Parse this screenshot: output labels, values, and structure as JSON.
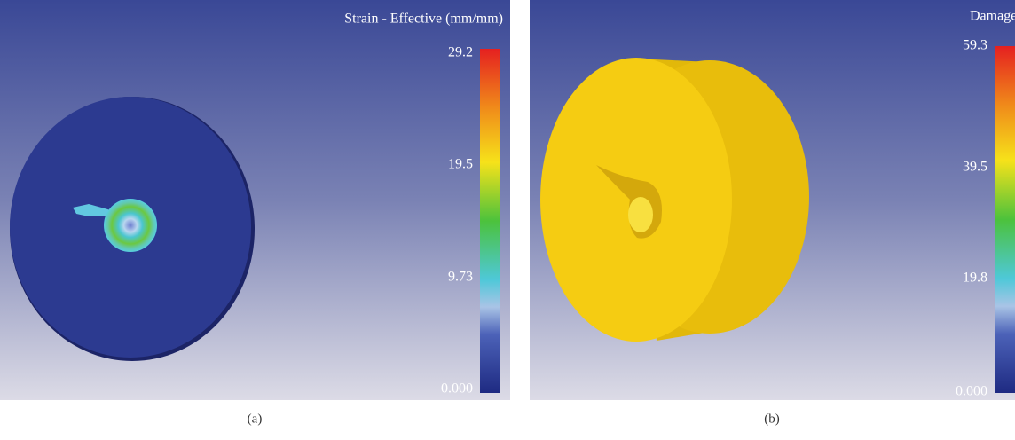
{
  "panels": [
    {
      "title": "Strain - Effective (mm/mm)",
      "colorbar_labels": [
        "29.2",
        "19.5",
        "9.73",
        "0.000"
      ],
      "caption": "(a)"
    },
    {
      "title": "Damage",
      "colorbar_labels": [
        "59.3",
        "39.5",
        "19.8",
        "0.000"
      ],
      "caption": "(b)"
    }
  ]
}
